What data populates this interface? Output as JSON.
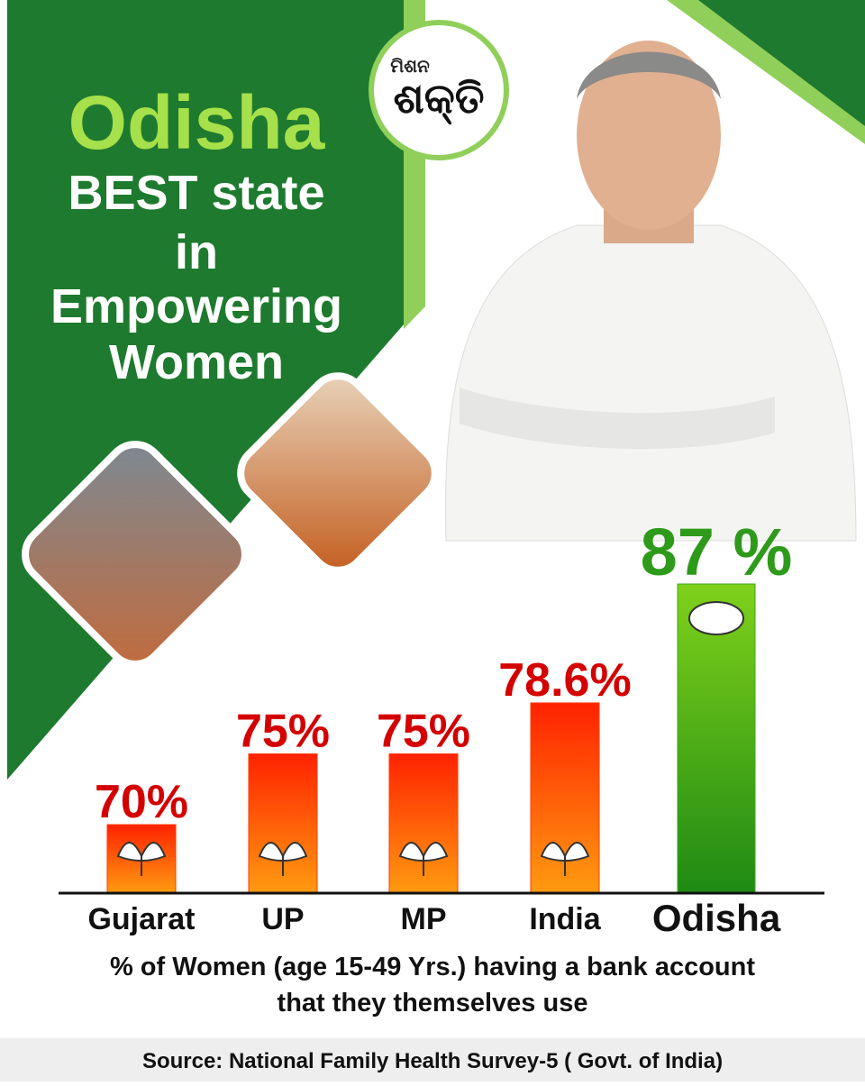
{
  "header": {
    "highlight": "Odisha",
    "lines": [
      "BEST state",
      "in",
      "Empowering",
      "Women"
    ]
  },
  "logo": {
    "small": "ମିଶନ",
    "big": "ଶକ୍ତି"
  },
  "chart_data": {
    "type": "bar",
    "categories": [
      "Gujarat",
      "UP",
      "MP",
      "India",
      "Odisha"
    ],
    "values": [
      70,
      75,
      75,
      78.6,
      87
    ],
    "value_labels": [
      "70%",
      "75%",
      "75%",
      "78.6%",
      "87 %"
    ],
    "colors": [
      "#ff3a00",
      "#ff3a00",
      "#ff3a00",
      "#ff3a00",
      "#3aa81a"
    ],
    "label_colors": [
      "#d40000",
      "#d40000",
      "#d40000",
      "#d40000",
      "#2e9a1a"
    ],
    "caption": [
      "% of Women (age 15-49 Yrs.) having a bank account",
      "that they themselves use"
    ]
  },
  "source": "Source: National Family Health Survey-5 ( Govt. of India)"
}
